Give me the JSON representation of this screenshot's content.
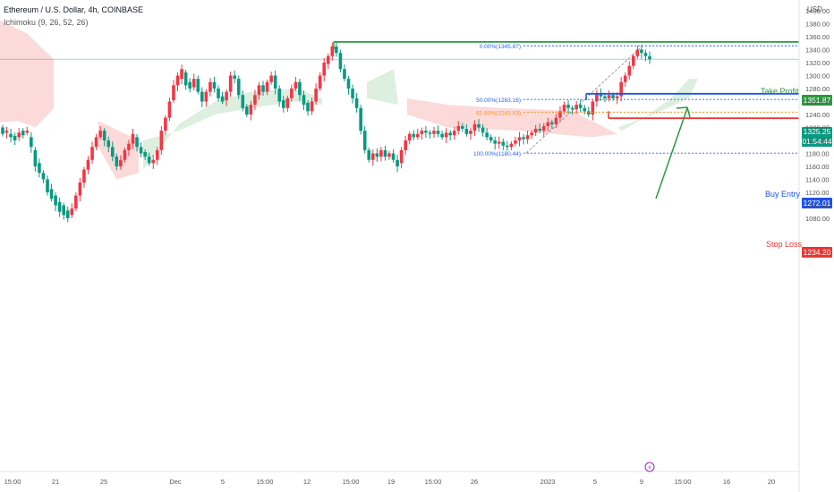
{
  "header": {
    "symbol_line": "Ethereum / U.S. Dollar, 4h, COINBASE",
    "indicator_line": "Ichimoku (9, 26, 52, 26)",
    "currency": "USD"
  },
  "colors": {
    "up": "#089981",
    "down": "#f23645",
    "cloud_bull": "#d7ecd9",
    "cloud_bear": "#fcd4d3",
    "take_profit": "#2b9a3e",
    "buy_entry": "#1e53e5",
    "stop_loss": "#e53935",
    "fib_blue": "#2962ff",
    "fib_orange": "#f7931a",
    "last_price": "#089981"
  },
  "chart_data": {
    "type": "candlestick",
    "ylim": [
      1070,
      1420
    ],
    "y_ticks": [
      1400,
      1380,
      1360,
      1340,
      1320,
      1300,
      1280,
      1260,
      1240,
      1220,
      1200,
      1180,
      1160,
      1140,
      1120,
      1100,
      1080
    ],
    "y_tick_labels": [
      "1400.00",
      "1380.00",
      "1360.00",
      "1340.00",
      "1320.00",
      "1300.00",
      "1280.00",
      "1260.00",
      "1240.00",
      "1220.00",
      "1200.00",
      "1180.00",
      "1160.00",
      "1140.00",
      "1120.00",
      "1100.00",
      "1080.00"
    ],
    "x_tick_labels": [
      "15:00",
      "21",
      "25",
      "Dec",
      "5",
      "15:00",
      "12",
      "15:00",
      "19",
      "15:00",
      "26",
      "2023",
      "5",
      "9",
      "15:00",
      "16",
      "20"
    ],
    "last_price": "1325.25",
    "countdown": "01:54:44",
    "levels": [
      {
        "name": "Take Profit",
        "value": 1351.87,
        "label": "1351.87"
      },
      {
        "name": "Buy Entry",
        "value": 1272.01,
        "label": "1272.01"
      },
      {
        "name": "Stop Loss",
        "value": 1234.2,
        "label": "1234.20"
      }
    ],
    "fib_levels": [
      {
        "label": "0.00%(1345.87)",
        "value": 1345.87
      },
      {
        "label": "50.00%(1263.16)",
        "value": 1263.16
      },
      {
        "label": "61.80%(1243.63)",
        "value": 1243.63
      },
      {
        "label": "100.00%(1180.44)",
        "value": 1180.44
      }
    ],
    "candle_anchors": [
      [
        1210,
        1220
      ],
      [
        1215,
        1212
      ],
      [
        1205,
        1210
      ],
      [
        1200,
        1207
      ],
      [
        1212,
        1205
      ],
      [
        1208,
        1215
      ],
      [
        1215,
        1212
      ],
      [
        1190,
        1205
      ],
      [
        1160,
        1185
      ],
      [
        1150,
        1165
      ],
      [
        1140,
        1150
      ],
      [
        1120,
        1140
      ],
      [
        1110,
        1125
      ],
      [
        1100,
        1115
      ],
      [
        1090,
        1105
      ],
      [
        1085,
        1100
      ],
      [
        1080,
        1092
      ],
      [
        1095,
        1085
      ],
      [
        1115,
        1095
      ],
      [
        1135,
        1115
      ],
      [
        1155,
        1135
      ],
      [
        1170,
        1155
      ],
      [
        1190,
        1170
      ],
      [
        1205,
        1190
      ],
      [
        1215,
        1205
      ],
      [
        1200,
        1215
      ],
      [
        1190,
        1200
      ],
      [
        1175,
        1190
      ],
      [
        1160,
        1175
      ],
      [
        1170,
        1160
      ],
      [
        1185,
        1170
      ],
      [
        1195,
        1185
      ],
      [
        1210,
        1195
      ],
      [
        1190,
        1205
      ],
      [
        1180,
        1190
      ],
      [
        1175,
        1182
      ],
      [
        1165,
        1175
      ],
      [
        1170,
        1165
      ],
      [
        1185,
        1170
      ],
      [
        1215,
        1185
      ],
      [
        1235,
        1215
      ],
      [
        1260,
        1235
      ],
      [
        1285,
        1262
      ],
      [
        1300,
        1285
      ],
      [
        1310,
        1295
      ],
      [
        1285,
        1305
      ],
      [
        1280,
        1290
      ],
      [
        1295,
        1282
      ],
      [
        1275,
        1295
      ],
      [
        1260,
        1275
      ],
      [
        1275,
        1260
      ],
      [
        1290,
        1275
      ],
      [
        1280,
        1290
      ],
      [
        1265,
        1280
      ],
      [
        1260,
        1268
      ],
      [
        1275,
        1262
      ],
      [
        1300,
        1275
      ],
      [
        1295,
        1300
      ],
      [
        1270,
        1295
      ],
      [
        1250,
        1270
      ],
      [
        1240,
        1252
      ],
      [
        1255,
        1240
      ],
      [
        1270,
        1255
      ],
      [
        1285,
        1270
      ],
      [
        1275,
        1285
      ],
      [
        1290,
        1275
      ],
      [
        1300,
        1290
      ],
      [
        1280,
        1300
      ],
      [
        1260,
        1280
      ],
      [
        1250,
        1262
      ],
      [
        1265,
        1250
      ],
      [
        1280,
        1265
      ],
      [
        1290,
        1280
      ],
      [
        1270,
        1290
      ],
      [
        1255,
        1270
      ],
      [
        1245,
        1258
      ],
      [
        1260,
        1245
      ],
      [
        1280,
        1260
      ],
      [
        1300,
        1280
      ],
      [
        1320,
        1300
      ],
      [
        1330,
        1318
      ],
      [
        1345,
        1330
      ],
      [
        1335,
        1345
      ],
      [
        1310,
        1335
      ],
      [
        1295,
        1310
      ],
      [
        1280,
        1295
      ],
      [
        1265,
        1280
      ],
      [
        1250,
        1265
      ],
      [
        1215,
        1250
      ],
      [
        1185,
        1215
      ],
      [
        1170,
        1185
      ],
      [
        1180,
        1170
      ],
      [
        1175,
        1180
      ],
      [
        1185,
        1175
      ],
      [
        1175,
        1185
      ],
      [
        1180,
        1175
      ],
      [
        1170,
        1180
      ],
      [
        1160,
        1170
      ],
      [
        1185,
        1165
      ],
      [
        1200,
        1185
      ],
      [
        1210,
        1200
      ],
      [
        1205,
        1210
      ],
      [
        1210,
        1205
      ],
      [
        1215,
        1210
      ],
      [
        1212,
        1215
      ],
      [
        1210,
        1212
      ],
      [
        1215,
        1210
      ],
      [
        1210,
        1215
      ],
      [
        1205,
        1210
      ],
      [
        1212,
        1205
      ],
      [
        1208,
        1212
      ],
      [
        1215,
        1208
      ],
      [
        1222,
        1215
      ],
      [
        1218,
        1222
      ],
      [
        1210,
        1218
      ],
      [
        1215,
        1210
      ],
      [
        1225,
        1215
      ],
      [
        1220,
        1225
      ],
      [
        1212,
        1220
      ],
      [
        1205,
        1212
      ],
      [
        1200,
        1205
      ],
      [
        1195,
        1200
      ],
      [
        1198,
        1195
      ],
      [
        1192,
        1198
      ],
      [
        1190,
        1192
      ],
      [
        1195,
        1190
      ],
      [
        1200,
        1195
      ],
      [
        1205,
        1200
      ],
      [
        1202,
        1205
      ],
      [
        1208,
        1202
      ],
      [
        1212,
        1208
      ],
      [
        1218,
        1212
      ],
      [
        1215,
        1218
      ],
      [
        1222,
        1215
      ],
      [
        1228,
        1222
      ],
      [
        1225,
        1228
      ],
      [
        1235,
        1225
      ],
      [
        1245,
        1235
      ],
      [
        1255,
        1245
      ],
      [
        1250,
        1255
      ],
      [
        1248,
        1250
      ],
      [
        1255,
        1248
      ],
      [
        1250,
        1255
      ],
      [
        1245,
        1250
      ],
      [
        1240,
        1245
      ],
      [
        1260,
        1240
      ],
      [
        1272,
        1260
      ],
      [
        1268,
        1272
      ],
      [
        1265,
        1268
      ],
      [
        1270,
        1265
      ],
      [
        1265,
        1270
      ],
      [
        1268,
        1265
      ],
      [
        1290,
        1268
      ],
      [
        1300,
        1290
      ],
      [
        1315,
        1300
      ],
      [
        1330,
        1315
      ],
      [
        1340,
        1330
      ],
      [
        1335,
        1340
      ],
      [
        1330,
        1335
      ],
      [
        1325,
        1330
      ]
    ]
  },
  "annotations": {
    "take_profit_label": "Take Profit",
    "buy_entry_label": "Buy Entry",
    "stop_loss_label": "Stop Loss"
  }
}
